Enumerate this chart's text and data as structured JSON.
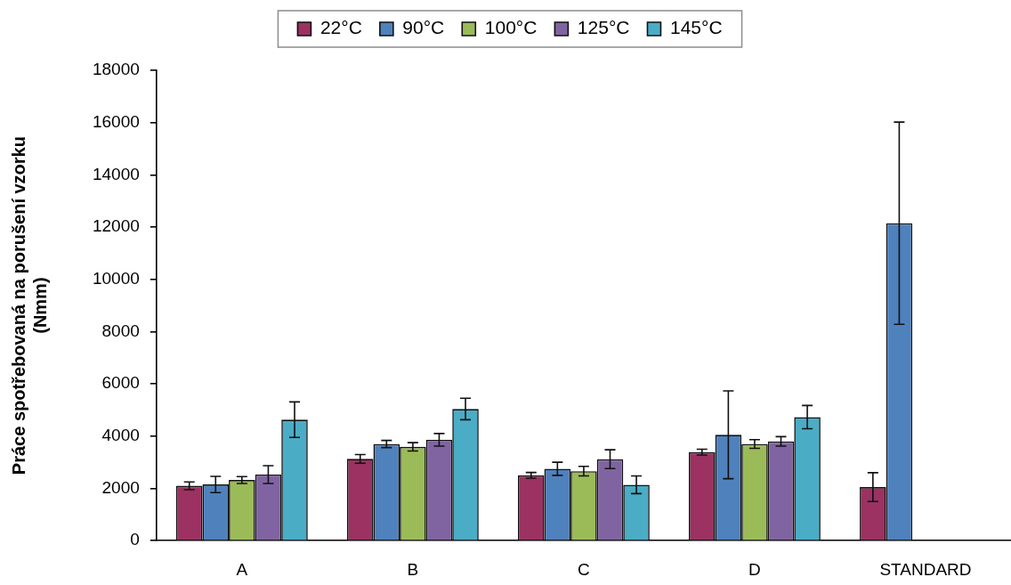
{
  "chart_data": {
    "type": "bar",
    "ylabel": "Práce spotřebovaná na porušení vzorku\n(Nmm)",
    "categories": [
      "A",
      "B",
      "C",
      "D",
      "STANDARD"
    ],
    "series": [
      {
        "name": "22°C",
        "color": "#9b3262",
        "values": [
          2100,
          3130,
          2500,
          3390,
          2050
        ],
        "errors": [
          150,
          165,
          110,
          110,
          550
        ]
      },
      {
        "name": "90°C",
        "color": "#4f81bd",
        "values": [
          2150,
          3700,
          2750,
          4050,
          12150
        ],
        "errors": [
          310,
          135,
          250,
          1680,
          3870
        ]
      },
      {
        "name": "100°C",
        "color": "#9bbb59",
        "values": [
          2320,
          3590,
          2660,
          3700,
          null
        ],
        "errors": [
          130,
          160,
          185,
          165,
          null
        ]
      },
      {
        "name": "125°C",
        "color": "#8064a2",
        "values": [
          2530,
          3860,
          3120,
          3800,
          null
        ],
        "errors": [
          340,
          240,
          360,
          180,
          null
        ]
      },
      {
        "name": "145°C",
        "color": "#4bacc6",
        "values": [
          4630,
          5040,
          2140,
          4730,
          null
        ],
        "errors": [
          680,
          410,
          340,
          445,
          null
        ]
      }
    ],
    "ylim": [
      0,
      18000
    ],
    "yticks": [
      0,
      2000,
      4000,
      6000,
      8000,
      10000,
      12000,
      14000,
      16000,
      18000
    ],
    "grid": false,
    "legend": "top"
  }
}
